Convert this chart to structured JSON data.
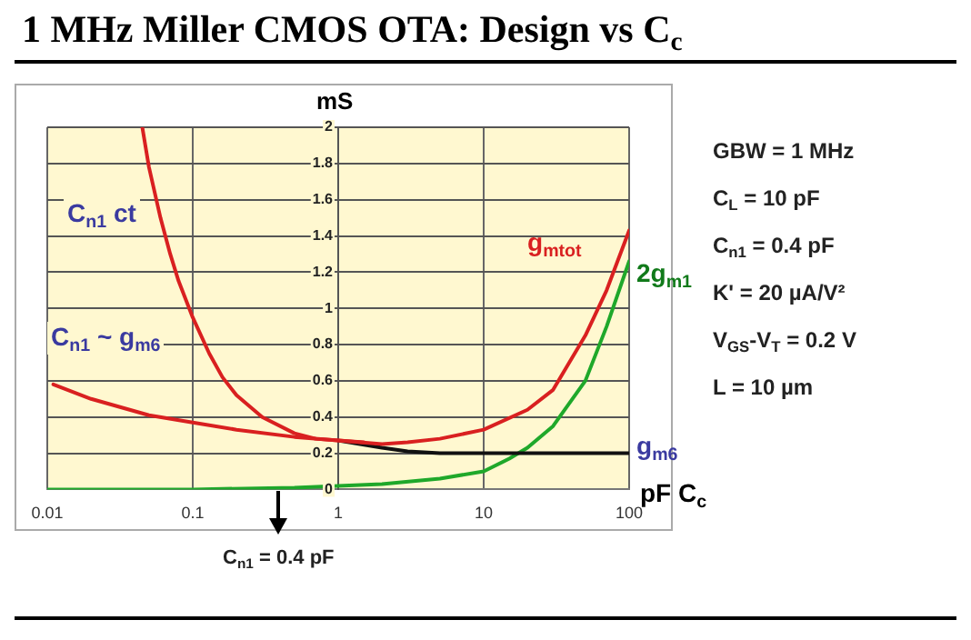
{
  "chart_data": {
    "type": "line",
    "title": "1 MHz Miller CMOS OTA: Design vs C$_{c}$",
    "xlabel": "pF  C$_{c}$",
    "ylabel": "mS",
    "log": "x",
    "xlim": [
      0.01,
      100
    ],
    "xticks": [
      0.01,
      0.1,
      1,
      10,
      100
    ],
    "ylim": [
      0,
      2
    ],
    "yticks": [
      0,
      0.2,
      0.4,
      0.6,
      0.8,
      1,
      1.2,
      1.4,
      1.6,
      1.8,
      2
    ],
    "grid": true,
    "legend": false,
    "marker": "none",
    "line_style": "solid",
    "series": [
      {
        "name": "g$_{mtot}$",
        "color": "#d92020",
        "x": [
          0.045,
          0.05,
          0.06,
          0.07,
          0.08,
          0.1,
          0.13,
          0.16,
          0.2,
          0.3,
          0.5,
          0.7,
          1,
          2,
          3,
          5,
          10,
          20,
          30,
          50,
          70,
          100
        ],
        "values": [
          2.0,
          1.78,
          1.5,
          1.3,
          1.15,
          0.95,
          0.75,
          0.62,
          0.52,
          0.4,
          0.31,
          0.28,
          0.27,
          0.25,
          0.26,
          0.28,
          0.33,
          0.44,
          0.55,
          0.85,
          1.1,
          1.43
        ]
      },
      {
        "color": "#d92020",
        "x": [
          0.011,
          0.02,
          0.05,
          0.1,
          0.2,
          0.5,
          1,
          1.5
        ],
        "values": [
          0.58,
          0.5,
          0.41,
          0.37,
          0.33,
          0.29,
          0.27,
          0.26
        ]
      },
      {
        "name": "g$_{m6}$",
        "color": "#111111",
        "x": [
          1,
          2,
          3,
          5,
          10,
          100
        ],
        "values": [
          0.27,
          0.23,
          0.21,
          0.2,
          0.2,
          0.2
        ]
      },
      {
        "name": "2g$_{m1}$",
        "color": "#1fa82a",
        "x": [
          0.01,
          0.1,
          0.5,
          1,
          2,
          5,
          10,
          15,
          20,
          30,
          50,
          70,
          100
        ],
        "values": [
          0,
          0,
          0.01,
          0.02,
          0.03,
          0.06,
          0.1,
          0.17,
          0.23,
          0.35,
          0.6,
          0.9,
          1.26
        ]
      }
    ],
    "annotations": [
      "C$_{n1}$ ct",
      "C$_{n1}$ ~ g$_{m6}$",
      "C$_{n1}$ = 0.4 pF",
      "GBW = 1 MHz",
      "C$_{L}$ = 10 pF",
      "C$_{n1}$ = 0.4 pF",
      "K' = 20 µA/V²",
      "V$_{GS}$-V$_{T}$ = 0.2 V",
      "L = 10 µm"
    ]
  }
}
